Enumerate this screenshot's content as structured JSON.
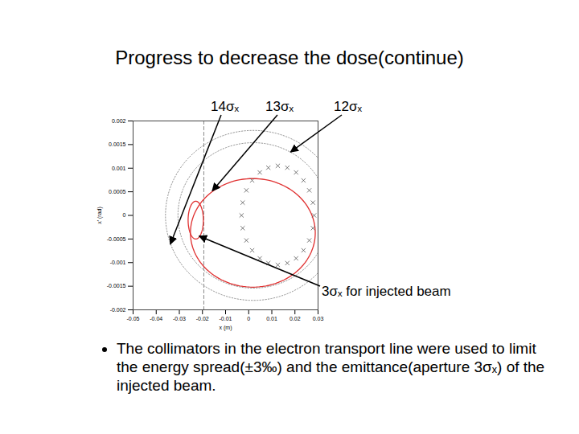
{
  "chart_data": {
    "type": "scatter",
    "title": "Progress to decrease the dose(continue)",
    "xlabel": "x (m)",
    "ylabel": "x' (rad)",
    "xlim": [
      -0.05,
      0.03
    ],
    "ylim": [
      -0.002,
      0.002
    ],
    "xticks": [
      -0.05,
      -0.04,
      -0.03,
      -0.02,
      -0.01,
      0,
      0.01,
      0.02,
      0.03
    ],
    "yticks": [
      -0.002,
      -0.0015,
      -0.001,
      -0.0005,
      0,
      0.0005,
      0.001,
      0.0015,
      0.002
    ],
    "grid": false,
    "series": [
      {
        "color": "#555555",
        "marker": "x",
        "x": [
          0.0283,
          0.0278,
          0.0262,
          0.0237,
          0.0205,
          0.0167,
          0.0126,
          0.0085,
          0.0048,
          0.0015,
          -0.001,
          -0.0026,
          -0.0031,
          -0.0026,
          -0.001,
          0.0015,
          0.0048,
          0.0085,
          0.0126,
          0.0167,
          0.0205,
          0.0237,
          0.0262,
          0.0278
        ],
        "y": [
          0,
          0.00027,
          0.00053,
          0.00074,
          0.00091,
          0.00101,
          0.00105,
          0.00101,
          0.00091,
          0.00074,
          0.00053,
          0.00027,
          0,
          -0.00027,
          -0.00053,
          -0.00074,
          -0.00091,
          -0.00101,
          -0.00105,
          -0.00101,
          -0.00091,
          -0.00074,
          -0.00053,
          -0.00027
        ]
      }
    ],
    "ellipses": [
      {
        "label": "14σₓ",
        "cx": 0.002,
        "cy": 0,
        "rx": 0.038,
        "ry": 0.0018,
        "color": "#999999",
        "line_style": "dotted"
      },
      {
        "label": "13σₓ",
        "cx": 0.0018,
        "cy": -0.00037,
        "rx": 0.027,
        "ry": 0.00115,
        "color": "#e03030",
        "line_style": "solid"
      },
      {
        "label": "12σₓ",
        "cx": 0.002,
        "cy": 0,
        "rx": 0.0326,
        "ry": 0.00154,
        "color": "#999999",
        "line_style": "dotted"
      },
      {
        "label": "3σₓ for injected beam",
        "cx": -0.0229,
        "cy": -0.0001,
        "rx": 0.0033,
        "ry": 0.0004,
        "color": "#e03030",
        "line_style": "solid"
      }
    ],
    "vlines": [
      {
        "x": -0.0194,
        "color": "#888888",
        "line_style": "dashed"
      }
    ],
    "caption": "The collimators in the electron transport line were used to limit the energy spread(±3‰) and the emittance(aperture 3σₓ) of the injected beam."
  }
}
